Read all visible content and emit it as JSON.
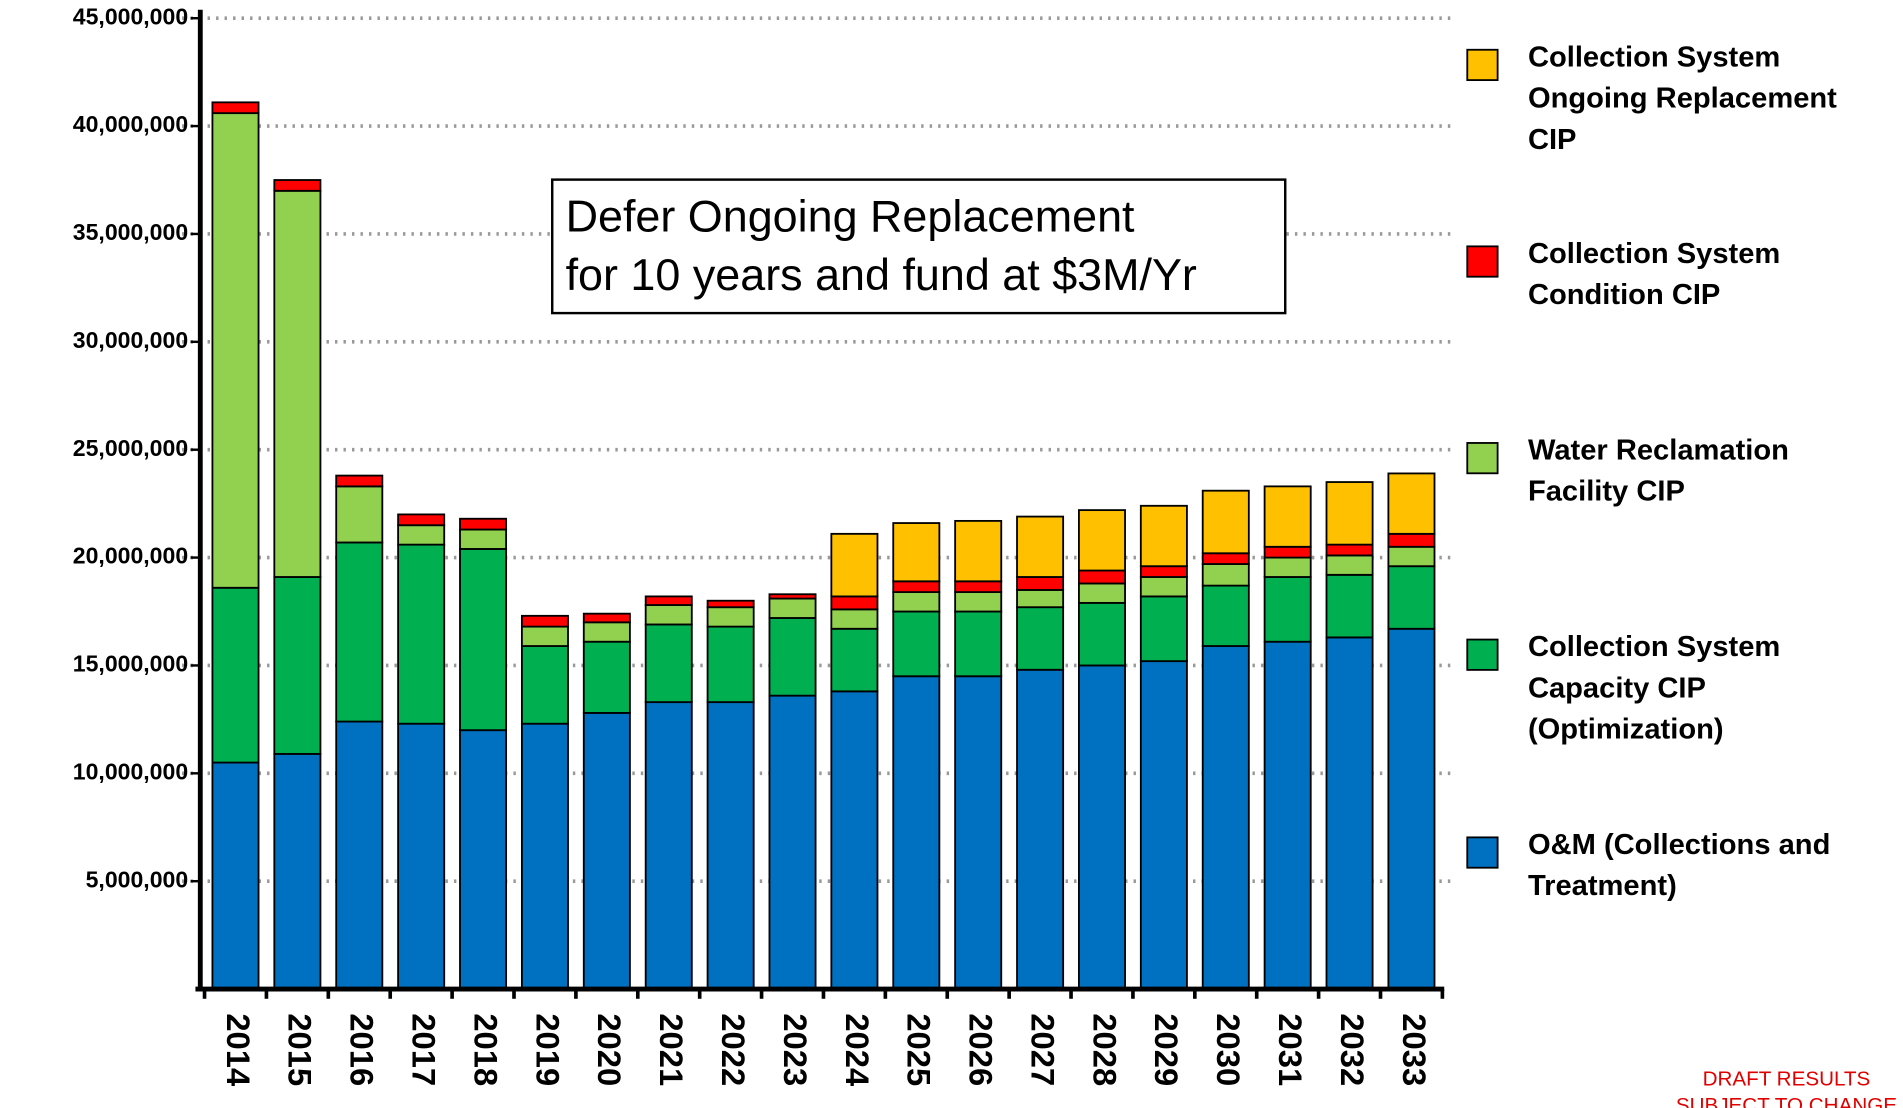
{
  "chart_data": {
    "type": "stacked_bar",
    "categories": [
      "2014",
      "2015",
      "2016",
      "2017",
      "2018",
      "2019",
      "2020",
      "2021",
      "2022",
      "2023",
      "2024",
      "2025",
      "2026",
      "2027",
      "2028",
      "2029",
      "2030",
      "2031",
      "2032",
      "2033"
    ],
    "series": [
      {
        "name": "O&M (Collections and Treatment)",
        "color": "#0070c0",
        "values": [
          10500000,
          10900000,
          12400000,
          12300000,
          12000000,
          12300000,
          12800000,
          13300000,
          13300000,
          13600000,
          13800000,
          14500000,
          14500000,
          14800000,
          15000000,
          15200000,
          15900000,
          16100000,
          16300000,
          16700000
        ]
      },
      {
        "name": "Collection System Capacity CIP (Optimization)",
        "color": "#00b050",
        "values": [
          8100000,
          8200000,
          8300000,
          8300000,
          8400000,
          3600000,
          3300000,
          3600000,
          3500000,
          3600000,
          2900000,
          3000000,
          3000000,
          2900000,
          2900000,
          3000000,
          2800000,
          3000000,
          2900000,
          2900000
        ]
      },
      {
        "name": "Water Reclamation Facility CIP",
        "color": "#92d050",
        "values": [
          22000000,
          17900000,
          2600000,
          900000,
          900000,
          900000,
          900000,
          900000,
          900000,
          900000,
          900000,
          900000,
          900000,
          800000,
          900000,
          900000,
          1000000,
          900000,
          900000,
          900000
        ]
      },
      {
        "name": "Collection System Condition CIP",
        "color": "#ff0000",
        "values": [
          500000,
          500000,
          500000,
          500000,
          500000,
          500000,
          400000,
          400000,
          300000,
          200000,
          600000,
          500000,
          500000,
          600000,
          600000,
          500000,
          500000,
          500000,
          500000,
          600000
        ]
      },
      {
        "name": "Collection System Ongoing Replacement CIP",
        "color": "#ffc000",
        "values": [
          0,
          0,
          0,
          0,
          0,
          0,
          0,
          0,
          0,
          0,
          2900000,
          2700000,
          2800000,
          2800000,
          2800000,
          2800000,
          2900000,
          2800000,
          2900000,
          2800000
        ]
      }
    ],
    "ylim": [
      0,
      45000000
    ],
    "yticks": [
      {
        "value": 5000000,
        "label": "5,000,000"
      },
      {
        "value": 10000000,
        "label": "10,000,000"
      },
      {
        "value": 15000000,
        "label": "15,000,000"
      },
      {
        "value": 20000000,
        "label": "20,000,000"
      },
      {
        "value": 25000000,
        "label": "25,000,000"
      },
      {
        "value": 30000000,
        "label": "30,000,000"
      },
      {
        "value": 35000000,
        "label": "35,000,000"
      },
      {
        "value": 40000000,
        "label": "40,000,000"
      },
      {
        "value": 45000000,
        "label": "45,000,000"
      }
    ],
    "grid": true,
    "legend": "right",
    "annotation": [
      "Defer Ongoing Replacement",
      "for 10 years and fund at $3M/Yr"
    ],
    "footnote": [
      "DRAFT RESULTS",
      "SUBJECT TO CHANGE"
    ]
  }
}
